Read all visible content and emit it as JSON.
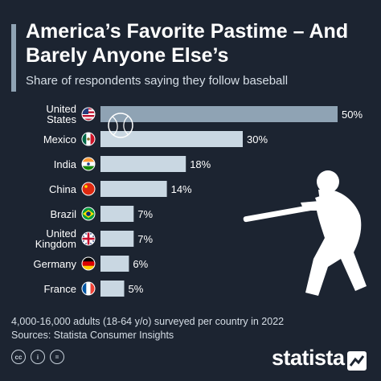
{
  "header": {
    "title": "America’s Favorite Pastime – And Barely Anyone Else’s",
    "subtitle": "Share of respondents saying they follow baseball"
  },
  "chart_data": {
    "type": "bar",
    "orientation": "horizontal",
    "title": "America’s Favorite Pastime – And Barely Anyone Else’s",
    "subtitle": "Share of respondents saying they follow baseball",
    "categories": [
      [
        "United",
        "States"
      ],
      [
        "Mexico"
      ],
      [
        "India"
      ],
      [
        "China"
      ],
      [
        "Brazil"
      ],
      [
        "United",
        "Kingdom"
      ],
      [
        "Germany"
      ],
      [
        "France"
      ]
    ],
    "values": [
      50,
      30,
      18,
      14,
      7,
      7,
      6,
      5
    ],
    "value_labels": [
      "50%",
      "30%",
      "18%",
      "14%",
      "7%",
      "7%",
      "6%",
      "5%"
    ],
    "flags": [
      "us-flag-icon",
      "mexico-flag-icon",
      "india-flag-icon",
      "china-flag-icon",
      "brazil-flag-icon",
      "uk-flag-icon",
      "germany-flag-icon",
      "france-flag-icon"
    ],
    "unit": "%",
    "xlim": [
      0,
      50
    ],
    "grid": false,
    "colors": {
      "highlight": "#8fa3b4",
      "bar": "#c9d7e2",
      "background": "#1c2431"
    }
  },
  "footer": {
    "note": "4,000-16,000 adults (18-64 y/o) surveyed per country in 2022",
    "source": "Sources: Statista Consumer Insights",
    "license_icons": [
      "cc-icon",
      "attribution-icon",
      "no-derivatives-icon"
    ],
    "brand": "statista"
  }
}
